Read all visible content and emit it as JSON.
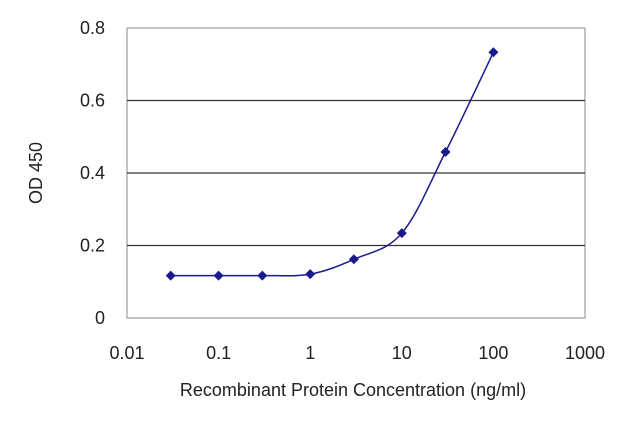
{
  "chart_data": {
    "type": "line",
    "title": "",
    "xlabel": "Recombinant Protein Concentration (ng/ml)",
    "ylabel": "OD 450",
    "x_scale": "log",
    "xlim": [
      0.01,
      1000
    ],
    "ylim": [
      0,
      0.8
    ],
    "x_ticks": [
      0.01,
      0.1,
      1,
      10,
      100,
      1000
    ],
    "x_tick_labels": [
      "0.01",
      "0.1",
      "1",
      "10",
      "100",
      "1000"
    ],
    "y_ticks": [
      0,
      0.2,
      0.4,
      0.6,
      0.8
    ],
    "y_tick_labels": [
      "0",
      "0.2",
      "0.4",
      "0.6",
      "0.8"
    ],
    "grid": "horizontal",
    "legend": "none",
    "colors": {
      "series": "#1a1a8c",
      "grid": "#333333",
      "frame": "#888888"
    },
    "series": [
      {
        "x": [
          0.03,
          0.1,
          0.3,
          1,
          3,
          10,
          30,
          100
        ],
        "y": [
          0.117,
          0.117,
          0.117,
          0.121,
          0.162,
          0.234,
          0.458,
          0.733
        ]
      }
    ]
  }
}
